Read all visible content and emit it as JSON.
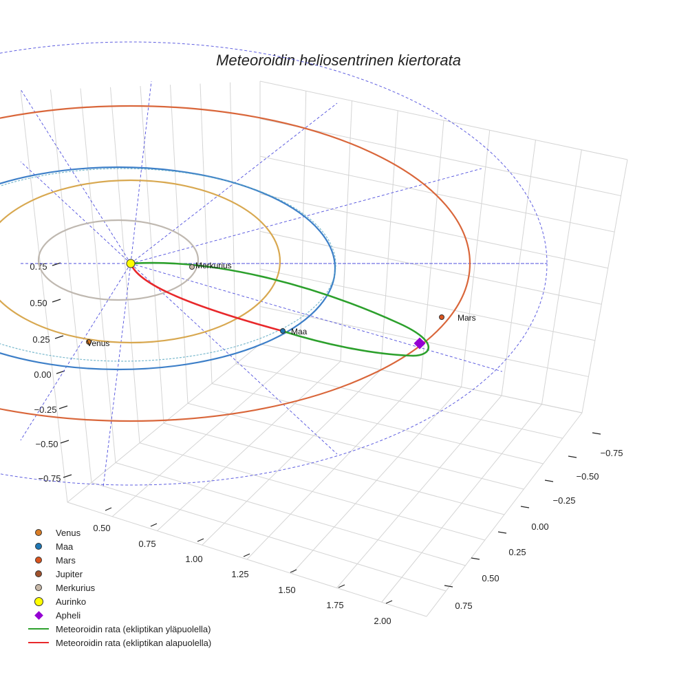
{
  "chart_data": {
    "type": "3d-orbit-plot",
    "title": "Meteoroidin heliosentrinen kiertorata",
    "axes": {
      "x_ticks": [
        "0.50",
        "0.75",
        "1.00",
        "1.25",
        "1.50",
        "1.75",
        "2.00"
      ],
      "y_ticks": [
        "−0.75",
        "−0.50",
        "−0.25",
        "0.00",
        "0.25",
        "0.50",
        "0.75"
      ],
      "z_ticks": [
        "0.75",
        "0.50",
        "0.25",
        "0.00",
        "−0.25",
        "−0.50",
        "−0.75"
      ]
    },
    "orbits": [
      {
        "name": "Merkurius",
        "color": "#bfb8b0"
      },
      {
        "name": "Venus",
        "color": "#d8a850"
      },
      {
        "name": "Maa",
        "color": "#1f77b4"
      },
      {
        "name": "Mars",
        "color": "#d9663a"
      },
      {
        "name": "Jupiter (reference, dashed)",
        "color": "#4d4ddd"
      }
    ],
    "bodies": [
      {
        "name": "Venus",
        "label": "Venus",
        "color": "#d97d26"
      },
      {
        "name": "Maa",
        "label": "Maa",
        "color": "#1f77b4"
      },
      {
        "name": "Mars",
        "label": "Mars",
        "color": "#d9541e"
      },
      {
        "name": "Merkurius",
        "label": "Merkurius",
        "color": "#c7b8a8"
      },
      {
        "name": "Aurinko",
        "label": "",
        "color": "#ffff00"
      }
    ],
    "meteoroid": {
      "above_color": "#2ca02c",
      "below_color": "#e8282b",
      "aphelion_color": "#9400d3"
    },
    "legend": [
      {
        "label": "Venus",
        "kind": "dot",
        "color": "#d97d26"
      },
      {
        "label": "Maa",
        "kind": "dot",
        "color": "#1f77b4"
      },
      {
        "label": "Mars",
        "kind": "dot",
        "color": "#d9541e"
      },
      {
        "label": "Jupiter",
        "kind": "dot",
        "color": "#a0522d"
      },
      {
        "label": "Merkurius",
        "kind": "dot",
        "color": "#c7b8a8"
      },
      {
        "label": "Aurinko",
        "kind": "bigdot",
        "color": "#ffff00"
      },
      {
        "label": "Apheli",
        "kind": "diamond",
        "color": "#9400d3"
      },
      {
        "label": "Meteoroidin rata (ekliptikan yläpuolella)",
        "kind": "line",
        "color": "#2ca02c"
      },
      {
        "label": "Meteoroidin rata (ekliptikan alapuolella)",
        "kind": "line",
        "color": "#e8282b"
      }
    ]
  }
}
